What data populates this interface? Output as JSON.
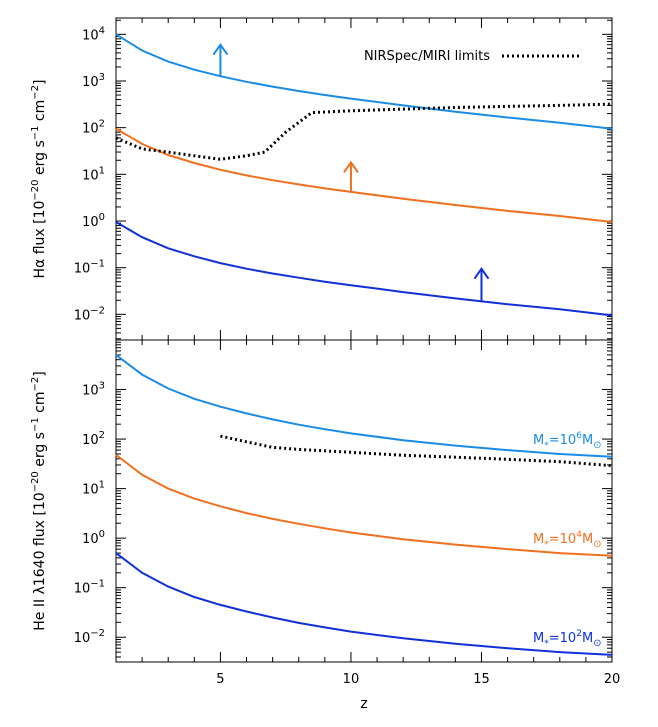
{
  "chart_data": [
    {
      "type": "line",
      "panel": "top",
      "ylabel_parts": {
        "ion": "Hα flux [10",
        "exp1": "−20",
        "unit": " erg s",
        "exp2": "−1",
        "unit2": " cm",
        "exp3": "−2",
        "close": "]"
      },
      "xlim": [
        1,
        20
      ],
      "ylim_log10": [
        -2.55,
        4.35
      ],
      "yscale": "log",
      "y_ticks": [
        {
          "mant": "10",
          "exp": "4",
          "log10": 4
        },
        {
          "mant": "10",
          "exp": "3",
          "log10": 3
        },
        {
          "mant": "10",
          "exp": "2",
          "log10": 2
        },
        {
          "mant": "10",
          "exp": "1",
          "log10": 1
        },
        {
          "mant": "10",
          "exp": "0",
          "log10": 0
        },
        {
          "mant": "10",
          "exp": "−1",
          "log10": -1
        },
        {
          "mant": "10",
          "exp": "−2",
          "log10": -2
        }
      ],
      "legend": {
        "label": "NIRSpec/MIRI limits",
        "style": "dotted",
        "position": "top-right"
      },
      "series": [
        {
          "name": "M* = 10^6 Msun",
          "color": "#1a8ce6",
          "x": [
            1,
            2,
            3,
            4,
            5,
            6,
            7,
            8,
            9,
            10,
            12,
            14,
            16,
            18,
            20
          ],
          "y": [
            10000,
            4500,
            2600,
            1750,
            1270,
            960,
            760,
            610,
            500,
            420,
            300,
            220,
            165,
            128,
            95
          ]
        },
        {
          "name": "M* = 10^4 Msun",
          "color": "#f07020",
          "x": [
            1,
            2,
            3,
            4,
            5,
            6,
            7,
            8,
            9,
            10,
            12,
            14,
            16,
            18,
            20
          ],
          "y": [
            95,
            45,
            26,
            17.5,
            12.5,
            9.5,
            7.5,
            6.1,
            5.0,
            4.2,
            3.0,
            2.2,
            1.65,
            1.28,
            0.95
          ]
        },
        {
          "name": "M* = 10^2 Msun",
          "color": "#1030d8",
          "x": [
            1,
            2,
            3,
            4,
            5,
            6,
            7,
            8,
            9,
            10,
            12,
            14,
            16,
            18,
            20
          ],
          "y": [
            0.95,
            0.45,
            0.26,
            0.175,
            0.125,
            0.095,
            0.075,
            0.061,
            0.05,
            0.042,
            0.03,
            0.022,
            0.0165,
            0.0128,
            0.0095
          ]
        },
        {
          "name": "NIRSpec/MIRI limits",
          "color": "#000000",
          "dash": "dotted",
          "x": [
            1,
            2,
            3,
            4,
            5,
            6,
            6.7,
            7.5,
            8.5,
            10,
            12,
            14,
            16,
            18,
            20
          ],
          "y": [
            60,
            35,
            30,
            25,
            21,
            25,
            30,
            80,
            210,
            230,
            250,
            270,
            285,
            300,
            320
          ]
        }
      ],
      "upper_limit_arrows": [
        {
          "x": 5,
          "y_from": 1260,
          "y_to": 6000,
          "color": "#1a8ce6"
        },
        {
          "x": 10,
          "y_from": 4.2,
          "y_to": 18,
          "color": "#f07020"
        },
        {
          "x": 15,
          "y_from": 0.0185,
          "y_to": 0.095,
          "color": "#1030d8"
        }
      ]
    },
    {
      "type": "line",
      "panel": "bottom",
      "ylabel_parts": {
        "ion": "He II λ1640 flux [10",
        "exp1": "−20",
        "unit": " erg s",
        "exp2": "−1",
        "unit2": " cm",
        "exp3": "−2",
        "close": "]"
      },
      "xlabel": "z",
      "xlim": [
        1,
        20
      ],
      "ylim_log10": [
        -2.5,
        4.0
      ],
      "yscale": "log",
      "x_ticks": [
        "5",
        "10",
        "15",
        "20"
      ],
      "x_tick_values": [
        5,
        10,
        15,
        20
      ],
      "y_ticks": [
        {
          "mant": "10",
          "exp": "3",
          "log10": 3
        },
        {
          "mant": "10",
          "exp": "2",
          "log10": 2
        },
        {
          "mant": "10",
          "exp": "1",
          "log10": 1
        },
        {
          "mant": "10",
          "exp": "0",
          "log10": 0
        },
        {
          "mant": "10",
          "exp": "−1",
          "log10": -1
        },
        {
          "mant": "10",
          "exp": "−2",
          "log10": -2
        }
      ],
      "series": [
        {
          "name": "M* = 10^6 Msun",
          "color": "#1a8ce6",
          "x": [
            1,
            2,
            3,
            4,
            5,
            6,
            7,
            8,
            9,
            10,
            12,
            14,
            16,
            18,
            20
          ],
          "y": [
            5000,
            2000,
            1050,
            650,
            450,
            330,
            250,
            195,
            158,
            130,
            95,
            74,
            60,
            50,
            44
          ]
        },
        {
          "name": "M* = 10^4 Msun",
          "color": "#f07020",
          "x": [
            1,
            2,
            3,
            4,
            5,
            6,
            7,
            8,
            9,
            10,
            12,
            14,
            16,
            18,
            20
          ],
          "y": [
            48,
            19,
            10,
            6.3,
            4.4,
            3.2,
            2.45,
            1.95,
            1.58,
            1.3,
            0.95,
            0.74,
            0.6,
            0.5,
            0.44
          ]
        },
        {
          "name": "M* = 10^2 Msun",
          "color": "#1030d8",
          "x": [
            1,
            2,
            3,
            4,
            5,
            6,
            7,
            8,
            9,
            10,
            12,
            14,
            16,
            18,
            20
          ],
          "y": [
            0.5,
            0.2,
            0.105,
            0.065,
            0.045,
            0.033,
            0.025,
            0.0195,
            0.0158,
            0.013,
            0.0095,
            0.0074,
            0.006,
            0.005,
            0.0044
          ]
        },
        {
          "name": "NIRSpec/MIRI limits",
          "color": "#000000",
          "dash": "dotted",
          "x": [
            5,
            6,
            7,
            8,
            10,
            12,
            14,
            16,
            18,
            20
          ],
          "y": [
            115,
            88,
            68,
            62,
            54,
            47,
            43,
            39,
            35,
            29
          ]
        }
      ],
      "mass_labels": [
        {
          "prefix": "M",
          "sub": "*",
          "eq": "=10",
          "exp": "6",
          "M2": "M",
          "sun": "⊙",
          "color": "#1a8ce6",
          "anchor_x": 19.6,
          "anchor_y": 80
        },
        {
          "prefix": "M",
          "sub": "*",
          "eq": "=10",
          "exp": "4",
          "M2": "M",
          "sun": "⊙",
          "color": "#f07020",
          "anchor_x": 19.6,
          "anchor_y": 0.8
        },
        {
          "prefix": "M",
          "sub": "*",
          "eq": "=10",
          "exp": "2",
          "M2": "M",
          "sun": "⊙",
          "color": "#1030d8",
          "anchor_x": 19.6,
          "anchor_y": 0.008
        }
      ]
    }
  ]
}
